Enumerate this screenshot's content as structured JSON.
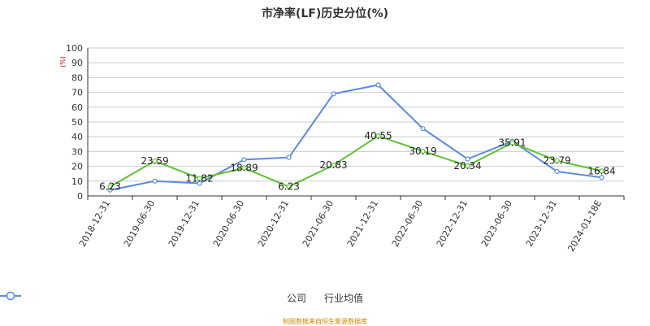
{
  "chart_data": {
    "type": "line",
    "title": "市净率(LF)历史分位(%)",
    "ylabel": "(%)",
    "xlabel": "",
    "ylim": [
      0,
      100
    ],
    "yticks": [
      0,
      10,
      20,
      30,
      40,
      50,
      60,
      70,
      80,
      90,
      100
    ],
    "grid": true,
    "legend_position": "bottom",
    "categories": [
      "2018-12-31",
      "2019-06-30",
      "2019-12-31",
      "2020-06-30",
      "2020-12-31",
      "2021-06-30",
      "2021-12-31",
      "2022-06-30",
      "2022-12-31",
      "2023-06-30",
      "2023-12-31",
      "2024-01-18E"
    ],
    "series": [
      {
        "name": "公司",
        "color": "#5ec232",
        "values": [
          6.23,
          23.59,
          11.82,
          18.89,
          6.23,
          20.83,
          40.55,
          30.19,
          20.34,
          35.91,
          23.79,
          16.84
        ],
        "labels": [
          "6.23",
          "23.59",
          "11.82",
          "18.89",
          "6.23",
          "20.83",
          "40.55",
          "30.19",
          "20.34",
          "35.91",
          "23.79",
          "16.84"
        ]
      },
      {
        "name": "行业均值",
        "color": "#5b8bdc",
        "values": [
          4,
          10,
          8.5,
          24.5,
          26,
          69,
          75,
          45.5,
          25,
          37,
          16.5,
          12.5
        ]
      }
    ]
  },
  "source_note": "制图数据来自恒生聚源数据库"
}
